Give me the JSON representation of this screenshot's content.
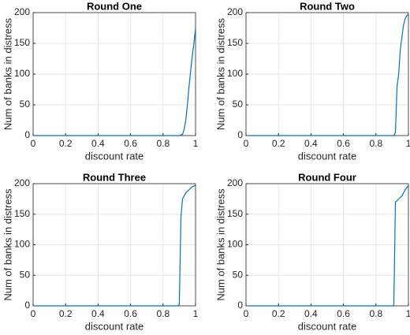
{
  "chart_data": [
    {
      "type": "line",
      "title": "Round One",
      "xlabel": "discount rate",
      "ylabel": "Num of banks in distress",
      "x": [
        0,
        0.9,
        0.91,
        0.92,
        0.93,
        0.94,
        0.95,
        0.96,
        0.97,
        0.98,
        0.99,
        1
      ],
      "series": [
        {
          "color": "#0072bd",
          "values": [
            0,
            0,
            1,
            2,
            10,
            25,
            50,
            80,
            105,
            130,
            150,
            175
          ]
        }
      ],
      "xlim": [
        0,
        1
      ],
      "ylim": [
        0,
        200
      ],
      "xticks": [
        0,
        0.2,
        0.4,
        0.6,
        0.8,
        1
      ],
      "yticks": [
        0,
        50,
        100,
        150,
        200
      ],
      "grid": true
    },
    {
      "type": "line",
      "title": "Round Two",
      "xlabel": "discount rate",
      "ylabel": "Num of banks in distress",
      "x": [
        0,
        0.91,
        0.92,
        0.93,
        0.94,
        0.95,
        0.96,
        0.97,
        0.98,
        0.99,
        1
      ],
      "series": [
        {
          "color": "#0072bd",
          "values": [
            0,
            0,
            5,
            80,
            100,
            140,
            160,
            180,
            190,
            195,
            197
          ]
        }
      ],
      "xlim": [
        0,
        1
      ],
      "ylim": [
        0,
        200
      ],
      "xticks": [
        0,
        0.2,
        0.4,
        0.6,
        0.8,
        1
      ],
      "yticks": [
        0,
        50,
        100,
        150,
        200
      ],
      "grid": true
    },
    {
      "type": "line",
      "title": "Round Three",
      "xlabel": "discount rate",
      "ylabel": "Num of banks in distress",
      "x": [
        0,
        0.89,
        0.9,
        0.91,
        0.92,
        0.93,
        0.94,
        0.96,
        0.98,
        1
      ],
      "series": [
        {
          "color": "#0072bd",
          "values": [
            0,
            0,
            2,
            145,
            175,
            180,
            185,
            190,
            195,
            197
          ]
        }
      ],
      "xlim": [
        0,
        1
      ],
      "ylim": [
        0,
        200
      ],
      "xticks": [
        0,
        0.2,
        0.4,
        0.6,
        0.8,
        1
      ],
      "yticks": [
        0,
        50,
        100,
        150,
        200
      ],
      "grid": true
    },
    {
      "type": "line",
      "title": "Round Four",
      "xlabel": "discount rate",
      "ylabel": "Num of banks in distress",
      "x": [
        0,
        0.91,
        0.92,
        0.93,
        0.94,
        0.96,
        0.98,
        1
      ],
      "series": [
        {
          "color": "#0072bd",
          "values": [
            0,
            0,
            170,
            172,
            175,
            180,
            190,
            197
          ]
        }
      ],
      "xlim": [
        0,
        1
      ],
      "ylim": [
        0,
        200
      ],
      "xticks": [
        0,
        0.2,
        0.4,
        0.6,
        0.8,
        1
      ],
      "yticks": [
        0,
        50,
        100,
        150,
        200
      ],
      "grid": true
    }
  ]
}
